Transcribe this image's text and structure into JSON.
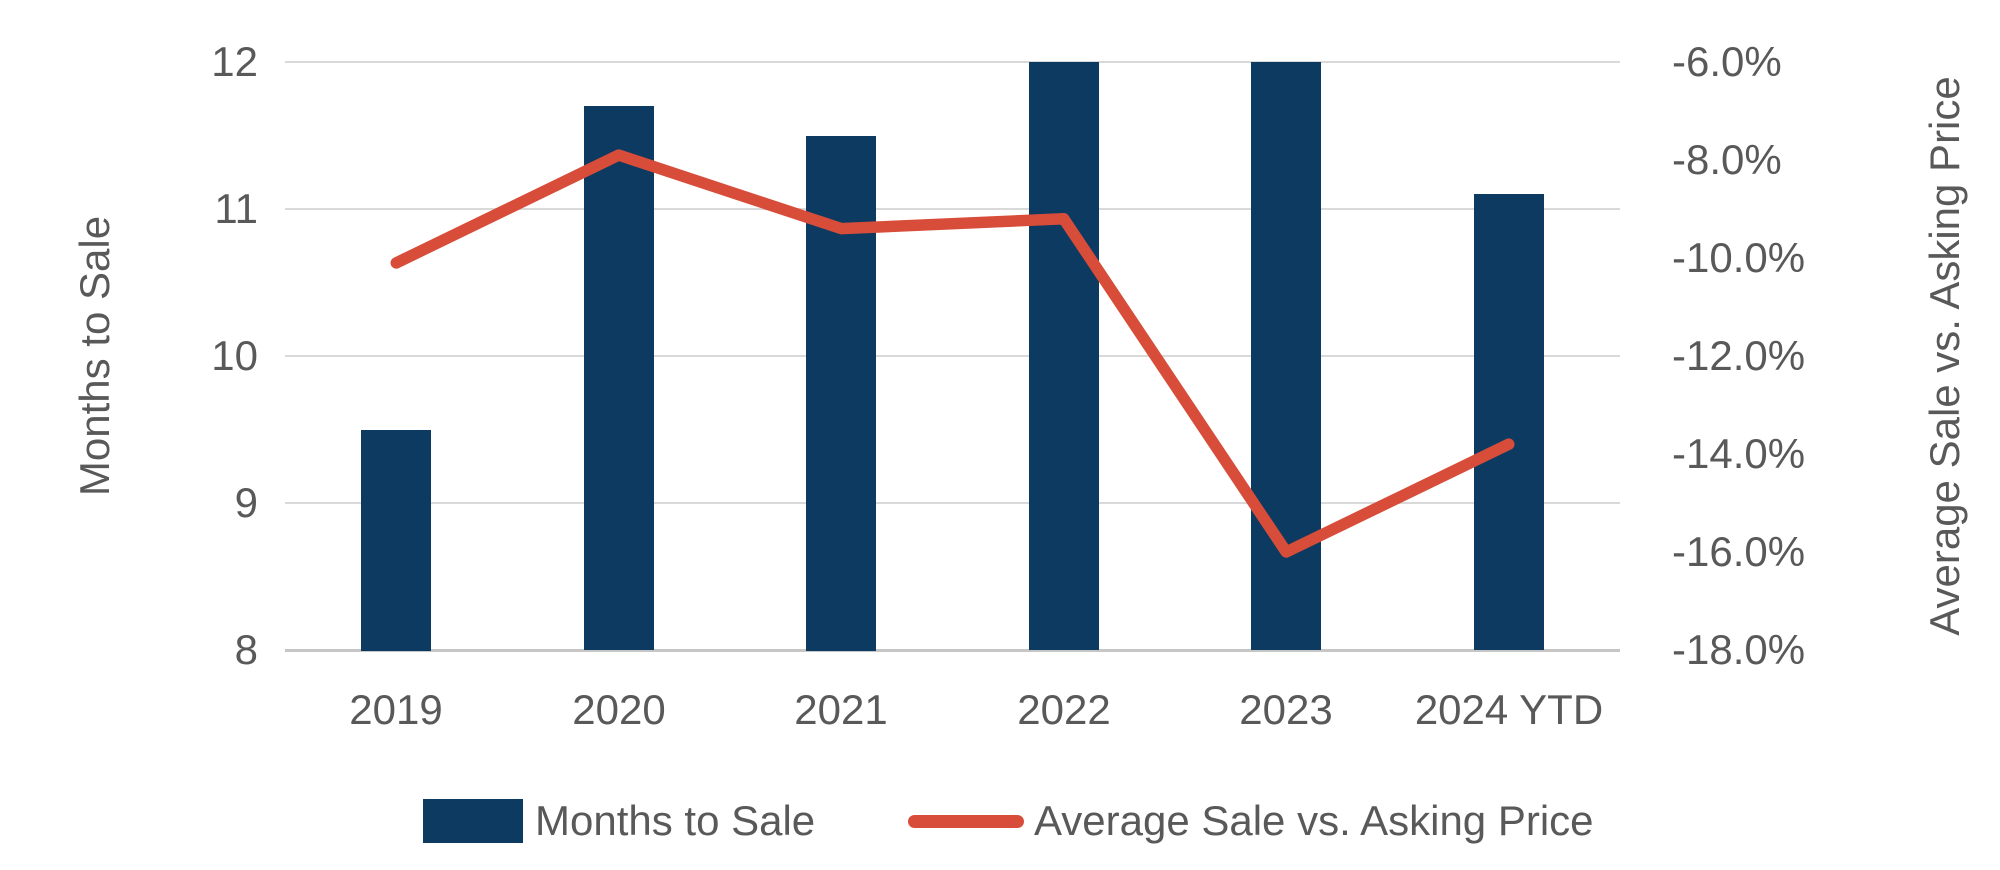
{
  "chart_data": {
    "type": "combo",
    "categories": [
      "2019",
      "2020",
      "2021",
      "2022",
      "2023",
      "2024 YTD"
    ],
    "series": [
      {
        "name": "Months to Sale",
        "type": "bar",
        "axis": "left",
        "values": [
          9.5,
          11.7,
          11.5,
          12,
          12,
          11.1
        ]
      },
      {
        "name": "Average Sale vs. Asking Price",
        "type": "line",
        "axis": "right",
        "values": [
          -10.1,
          -7.9,
          -9.4,
          -9.2,
          -16.0,
          -13.8
        ]
      }
    ],
    "left_axis": {
      "title": "Months to Sale",
      "min": 8,
      "max": 12,
      "tick_labels": [
        "12",
        "11",
        "10",
        "9",
        "8"
      ]
    },
    "right_axis": {
      "title": "Average Sale vs. Asking Price",
      "min": -18,
      "max": -6,
      "tick_labels": [
        "-6.0%",
        "-8.0%",
        "-10.0%",
        "-12.0%",
        "-14.0%",
        "-16.0%",
        "-18.0%"
      ]
    },
    "grid": true,
    "legend_position": "bottom"
  },
  "legend": {
    "items": [
      {
        "label": "Months to Sale",
        "swatch": "bar"
      },
      {
        "label": "Average Sale vs. Asking Price",
        "swatch": "line"
      }
    ]
  },
  "colors": {
    "bar": "#0C3A60",
    "line": "#D84D3A",
    "text": "#595959",
    "gridline": "#D9D9D9",
    "axis_line": "#C6C6C6",
    "background": "#FFFFFF"
  }
}
